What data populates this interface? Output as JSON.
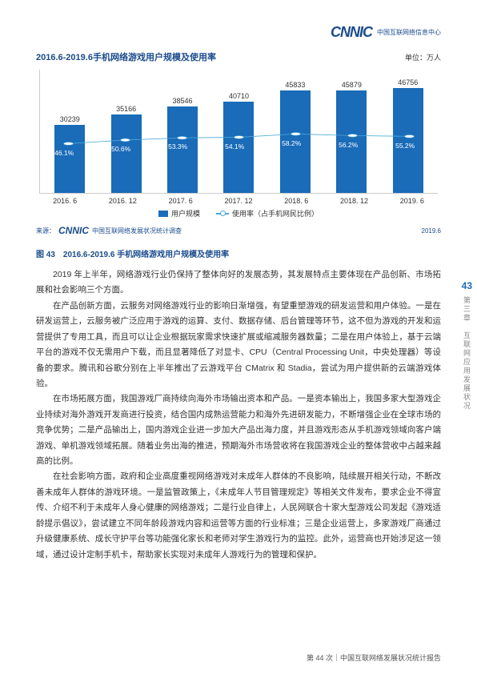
{
  "header": {
    "logo": "CNNIC",
    "logo_sub": "中国互联网络信息中心"
  },
  "chart": {
    "type": "bar+line",
    "title": "2016.6-2019.6手机网络游戏用户规模及使用率",
    "unit": "单位：万人",
    "categories": [
      "2016. 6",
      "2016. 12",
      "2017. 6",
      "2017. 12",
      "2018. 6",
      "2018. 12",
      "2019. 6"
    ],
    "bar_values": [
      30239,
      35166,
      38546,
      40710,
      45833,
      45879,
      46756
    ],
    "line_labels": [
      "46.1%",
      "50.6%",
      "53.3%",
      "54.1%",
      "58.2%",
      "56.2%",
      "55.2%"
    ],
    "line_values": [
      46.1,
      50.6,
      53.3,
      54.1,
      58.2,
      56.2,
      55.2
    ],
    "bar_color": "#1a6bb8",
    "line_color": "#4aa8d8",
    "ylim": [
      0,
      50000
    ],
    "legend_bar": "用户规模",
    "legend_line": "使用率（占手机网民比例）",
    "source_prefix": "来源：",
    "source_logo": "CNNIC",
    "source_text": "中国互联网络发展状况统计调查",
    "source_date": "2019.6"
  },
  "fig_caption": "图 43　2016.6-2019.6 手机网络游戏用户规模及使用率",
  "paragraphs": [
    "2019 年上半年，网络游戏行业仍保持了整体向好的发展态势，其发展特点主要体现在产品创新、市场拓展和社会影响三个方面。",
    "在产品创新方面，云服务对网络游戏行业的影响日渐增强，有望重塑游戏的研发运营和用户体验。一是在研发运营上，云服务被广泛应用于游戏的运算、支付、数据存储、后台管理等环节，这不但为游戏的开发和运营提供了专用工具，而且可以让企业根据玩家需求快速扩展或缩减服务器数量；二是在用户体验上，基于云端平台的游戏不仅无需用户下载，而且显著降低了对显卡、CPU（Central Processing Unit，中央处理器）等设备的要求。腾讯和谷歌分别在上半年推出了云游戏平台 CMatrix 和 Stadia，尝试为用户提供新的云端游戏体验。",
    "在市场拓展方面，我国游戏厂商持续向海外市场输出资本和产品。一是资本输出上，我国多家大型游戏企业持续对海外游戏开发商进行投资，结合国内成熟运营能力和海外先进研发能力，不断增强企业在全球市场的竞争优势；二是产品输出上，国内游戏企业进一步加大产品出海力度，并且游戏形态从手机游戏领域向客户端游戏、单机游戏领域拓展。随着业务出海的推进，预期海外市场营收将在我国游戏企业的整体营收中占越来越高的比例。",
    "在社会影响方面，政府和企业高度重视网络游戏对未成年人群体的不良影响，陆续展开相关行动，不断改善未成年人群体的游戏环境。一是监管政策上，《未成年人节目管理规定》等相关文件发布，要求企业不得宣传、介绍不利于未成年人身心健康的网络游戏；二是行业自律上，人民网联合十家大型游戏公司发起《游戏适龄提示倡议》，尝试建立不同年龄段游戏内容和运营等方面的行业标准；三是企业运营上，多家游戏厂商通过升级健康系统、成长守护平台等功能强化家长和老师对学生游戏行为的监控。此外，运营商也开始涉足这一领域，通过设计定制手机卡，帮助家长实现对未成年人游戏行为的管理和保护。"
  ],
  "side": {
    "num": "43",
    "text": "第三章　互联网应用发展状况"
  },
  "footer": "第 44 次｜中国互联网络发展状况统计报告"
}
